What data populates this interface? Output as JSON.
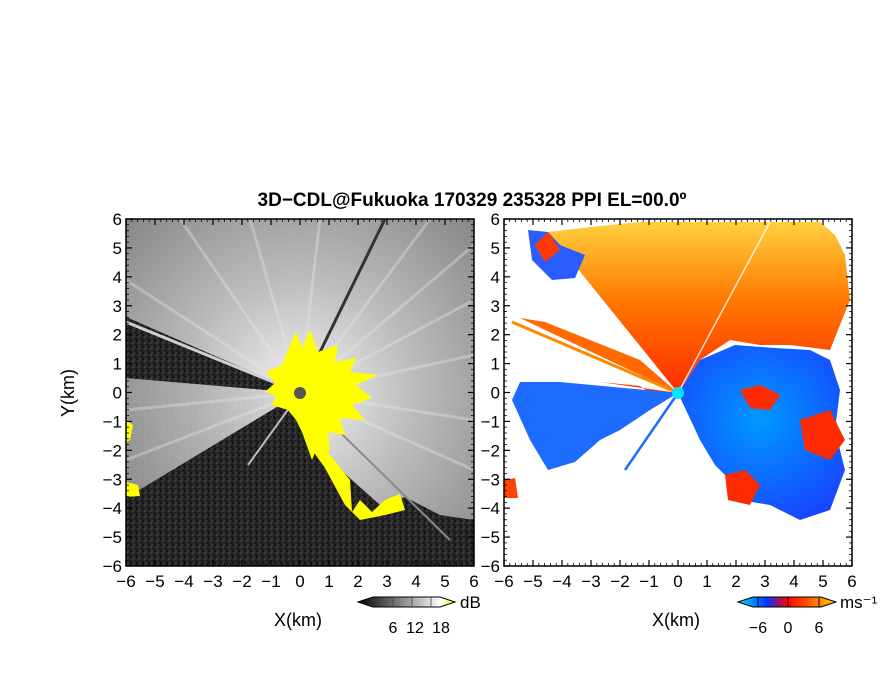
{
  "chart_data": {
    "title": "3D−CDL@Fukuoka 170329 235328 PPI EL=00.0º",
    "panels": [
      {
        "type": "heatmap",
        "field": "reflectivity",
        "xlabel": "X(km)",
        "ylabel": "Y(km)",
        "xlim": [
          -6,
          6
        ],
        "ylim": [
          -6,
          6
        ],
        "x_ticks": [
          "−6",
          "−5",
          "−4",
          "−3",
          "−2",
          "−1",
          "0",
          "1",
          "2",
          "3",
          "4",
          "5",
          "6"
        ],
        "y_ticks": [
          "−6",
          "−5",
          "−4",
          "−3",
          "−2",
          "−1",
          "0",
          "1",
          "2",
          "3",
          "4",
          "5",
          "6"
        ],
        "colorbar": {
          "unit": "dB",
          "ticks": [
            "6",
            "12",
            "18"
          ],
          "colors": [
            "#000000",
            "#ffffff",
            "#ffff00"
          ]
        }
      },
      {
        "type": "heatmap",
        "field": "doppler_velocity",
        "xlabel": "X(km)",
        "xlim": [
          -6,
          6
        ],
        "ylim": [
          -6,
          6
        ],
        "x_ticks": [
          "−6",
          "−5",
          "−4",
          "−3",
          "−2",
          "−1",
          "0",
          "1",
          "2",
          "3",
          "4",
          "5",
          "6"
        ],
        "y_ticks": [
          "−6",
          "−5",
          "−4",
          "−3",
          "−2",
          "−1",
          "0",
          "1",
          "2",
          "3",
          "4",
          "5",
          "6"
        ],
        "colorbar": {
          "unit": "ms⁻¹",
          "ticks": [
            "−6",
            "0",
            "6"
          ],
          "colors": [
            "#00ccff",
            "#0033ff",
            "#ff2200",
            "#ffcc00"
          ]
        }
      }
    ],
    "radar_site": [
      0,
      0
    ]
  }
}
